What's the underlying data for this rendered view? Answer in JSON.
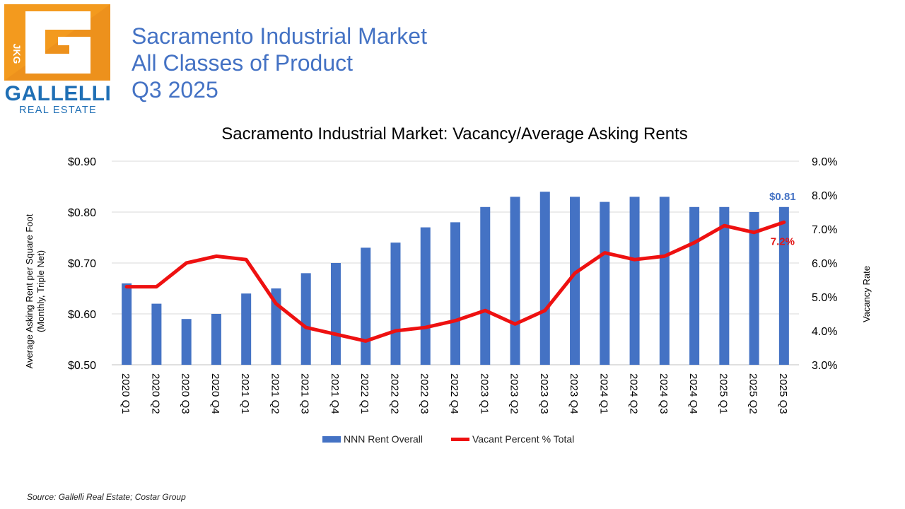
{
  "header": {
    "line1": "Sacramento Industrial Market",
    "line2": "All Classes of Product",
    "line3": "Q3 2025"
  },
  "logo": {
    "name": "GALLELLI",
    "sub": "REAL ESTATE",
    "initials": "JKG",
    "colors": {
      "orange": "#f39a1e",
      "blue": "#1f6fb5"
    }
  },
  "source": "Source: Gallelli Real Estate; Costar Group",
  "chart_data": {
    "type": "bar",
    "title": "Sacramento Industrial Market: Vacancy/Average Asking Rents",
    "categories": [
      "2020 Q1",
      "2020 Q2",
      "2020 Q3",
      "2020 Q4",
      "2021 Q1",
      "2021 Q2",
      "2021 Q3",
      "2021 Q4",
      "2022 Q1",
      "2022 Q2",
      "2022 Q3",
      "2022 Q4",
      "2023 Q1",
      "2023 Q2",
      "2023 Q3",
      "2023 Q4",
      "2024 Q1",
      "2024 Q2",
      "2024 Q3",
      "2024 Q4",
      "2025 Q1",
      "2025 Q2",
      "2025 Q3"
    ],
    "series": [
      {
        "name": "NNN Rent Overall",
        "type": "bar",
        "axis": "left",
        "color": "#4472c4",
        "values": [
          0.66,
          0.62,
          0.59,
          0.6,
          0.64,
          0.65,
          0.68,
          0.7,
          0.73,
          0.74,
          0.77,
          0.78,
          0.81,
          0.83,
          0.84,
          0.83,
          0.82,
          0.83,
          0.83,
          0.81,
          0.81,
          0.8,
          0.81
        ]
      },
      {
        "name": "Vacant Percent % Total",
        "type": "line",
        "axis": "right",
        "color": "#ee1111",
        "values": [
          5.3,
          5.3,
          6.0,
          6.2,
          6.1,
          4.8,
          4.1,
          3.9,
          3.7,
          4.0,
          4.1,
          4.3,
          4.6,
          4.2,
          4.6,
          5.7,
          6.3,
          6.1,
          6.2,
          6.6,
          7.1,
          6.9,
          7.2
        ]
      }
    ],
    "y_left": {
      "label_line1": "Average Asking Rent per Square Foot",
      "label_line2": "(Monthly, Triple Net)",
      "min": 0.5,
      "max": 0.9,
      "step": 0.1,
      "ticks": [
        "$0.50",
        "$0.60",
        "$0.70",
        "$0.80",
        "$0.90"
      ]
    },
    "y_right": {
      "label": "Vacancy Rate",
      "min": 3.0,
      "max": 9.0,
      "step": 1.0,
      "ticks": [
        "3.0%",
        "4.0%",
        "5.0%",
        "6.0%",
        "7.0%",
        "8.0%",
        "9.0%"
      ]
    },
    "annotations": {
      "last_rent": "$0.81",
      "last_vacancy": "7.2%"
    },
    "grid": true,
    "legend_position": "bottom"
  }
}
